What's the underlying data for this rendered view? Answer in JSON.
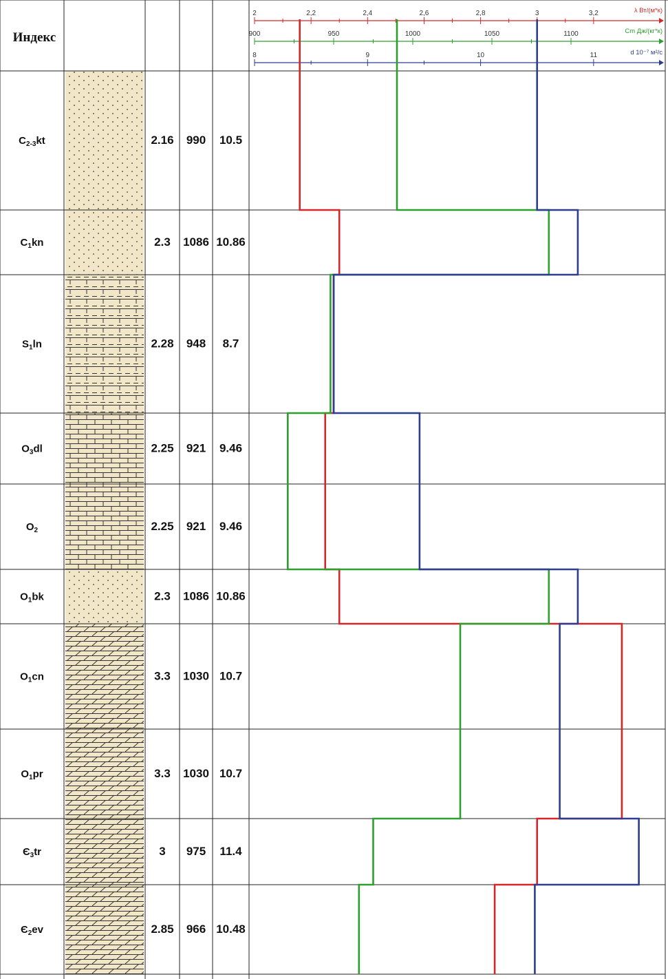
{
  "header": {
    "title": "Индекс"
  },
  "chart_data": {
    "type": "line",
    "title": "",
    "axes": [
      {
        "key": "lambda",
        "label": "λ Вт/(м*к)",
        "color": "#d62728",
        "range": [
          2,
          3.4
        ],
        "tick_labels": [
          "2",
          "2,2",
          "2,4",
          "2,6",
          "2,8",
          "3",
          "3,2"
        ],
        "tick_values": [
          2,
          2.2,
          2.4,
          2.6,
          2.8,
          3,
          3.2
        ]
      },
      {
        "key": "cm",
        "label": "Cm Дж/(кг*к)",
        "color": "#2ca02c",
        "range": [
          900,
          1150
        ],
        "tick_labels": [
          "900",
          "950",
          "1000",
          "1050",
          "1100"
        ],
        "tick_values": [
          900,
          950,
          1000,
          1050,
          1100
        ]
      },
      {
        "key": "d",
        "label": "d 10⁻⁷ м²/с",
        "color": "#2e3d8f",
        "range": [
          8,
          11.5
        ],
        "tick_labels": [
          "8",
          "9",
          "10",
          "11"
        ],
        "tick_values": [
          8,
          9,
          10,
          11
        ]
      }
    ],
    "layers": [
      {
        "index": "C2-3kt",
        "index_base": "C",
        "index_sub": "2-3",
        "index_suffix": "kt",
        "lambda_label": "2.16",
        "cm_label": "990",
        "d_label": "10.5",
        "lambda": 2.16,
        "cm": 990,
        "d": 10.5
      },
      {
        "index": "C1kn",
        "index_base": "C",
        "index_sub": "1",
        "index_suffix": "kn",
        "lambda_label": "2.3",
        "cm_label": "1086",
        "d_label": "10.86",
        "lambda": 2.3,
        "cm": 1086,
        "d": 10.86
      },
      {
        "index": "S1ln",
        "index_base": "S",
        "index_sub": "1",
        "index_suffix": "ln",
        "lambda_label": "2.28",
        "cm_label": "948",
        "d_label": "8.7",
        "lambda": 2.28,
        "cm": 948,
        "d": 8.7
      },
      {
        "index": "O3dl",
        "index_base": "O",
        "index_sub": "3",
        "index_suffix": "dl",
        "lambda_label": "2.25",
        "cm_label": "921",
        "d_label": "9.46",
        "lambda": 2.25,
        "cm": 921,
        "d": 9.46
      },
      {
        "index": "O2",
        "index_base": "O",
        "index_sub": "2",
        "index_suffix": "",
        "lambda_label": "2.25",
        "cm_label": "921",
        "d_label": "9.46",
        "lambda": 2.25,
        "cm": 921,
        "d": 9.46
      },
      {
        "index": "O1bk",
        "index_base": "O",
        "index_sub": "1",
        "index_suffix": "bk",
        "lambda_label": "2.3",
        "cm_label": "1086",
        "d_label": "10.86",
        "lambda": 2.3,
        "cm": 1086,
        "d": 10.86
      },
      {
        "index": "O1cn",
        "index_base": "O",
        "index_sub": "1",
        "index_suffix": "cn",
        "lambda_label": "3.3",
        "cm_label": "1030",
        "d_label": "10.7",
        "lambda": 3.3,
        "cm": 1030,
        "d": 10.7
      },
      {
        "index": "O1pr",
        "index_base": "O",
        "index_sub": "1",
        "index_suffix": "pr",
        "lambda_label": "3.3",
        "cm_label": "1030",
        "d_label": "10.7",
        "lambda": 3.3,
        "cm": 1030,
        "d": 10.7
      },
      {
        "index": "Є3tr",
        "index_base": "Є",
        "index_sub": "3",
        "index_suffix": "tr",
        "lambda_label": "3",
        "cm_label": "975",
        "d_label": "11.4",
        "lambda": 3,
        "cm": 975,
        "d": 11.4
      },
      {
        "index": "Є2ev",
        "index_base": "Є",
        "index_sub": "2",
        "index_suffix": "ev",
        "lambda_label": "2.85",
        "cm_label": "966",
        "d_label": "10.48",
        "lambda": 2.85,
        "cm": 966,
        "d": 10.48
      }
    ]
  }
}
